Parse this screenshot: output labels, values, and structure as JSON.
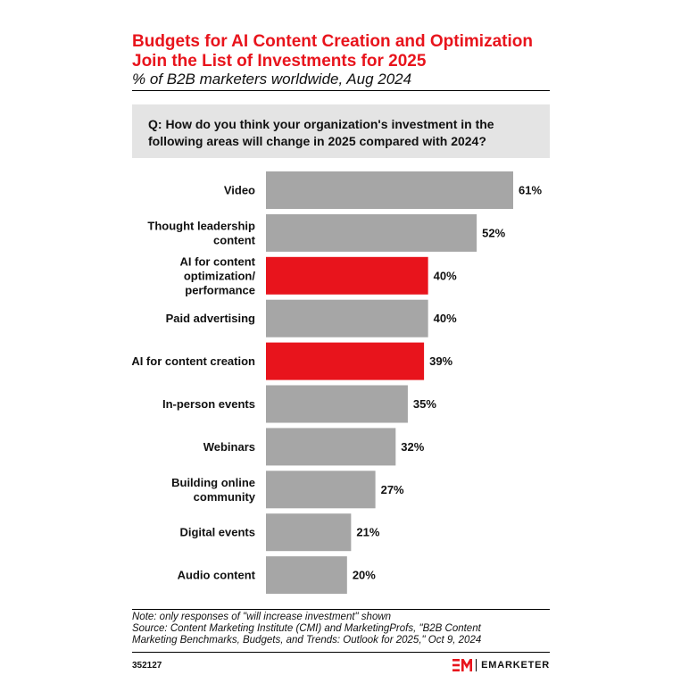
{
  "header": {
    "title_line1": "Budgets for AI Content Creation and Optimization",
    "title_line2": "Join the List of Investments for 2025",
    "subtitle": "% of B2B marketers worldwide, Aug 2024",
    "question_line1": "Q: How do you think your organization's investment in the",
    "question_line2": "following areas will change in 2025 compared with 2024?"
  },
  "chart_data": {
    "type": "bar",
    "orientation": "horizontal",
    "title": "Budgets for AI Content Creation and Optimization Join the List of Investments for 2025",
    "subtitle": "% of B2B marketers worldwide, Aug 2024",
    "xlim": [
      0,
      61
    ],
    "value_suffix": "%",
    "categories": [
      {
        "lines": [
          "Video"
        ],
        "value": 61,
        "highlight": false
      },
      {
        "lines": [
          "Thought leadership",
          "content"
        ],
        "value": 52,
        "highlight": false
      },
      {
        "lines": [
          "AI for content",
          "optimization/",
          "performance"
        ],
        "value": 40,
        "highlight": true
      },
      {
        "lines": [
          "Paid advertising"
        ],
        "value": 40,
        "highlight": false
      },
      {
        "lines": [
          "AI for content creation"
        ],
        "value": 39,
        "highlight": true
      },
      {
        "lines": [
          "In-person events"
        ],
        "value": 35,
        "highlight": false
      },
      {
        "lines": [
          "Webinars"
        ],
        "value": 32,
        "highlight": false
      },
      {
        "lines": [
          "Building online",
          "community"
        ],
        "value": 27,
        "highlight": false
      },
      {
        "lines": [
          "Digital events"
        ],
        "value": 21,
        "highlight": false
      },
      {
        "lines": [
          "Audio content"
        ],
        "value": 20,
        "highlight": false
      }
    ],
    "colors": {
      "default": "#a6a6a6",
      "highlight": "#e8141c"
    }
  },
  "footer": {
    "note": "Note: only responses of \"will increase investment\" shown",
    "source_line1": "Source: Content Marketing Institute (CMI) and MarketingProfs, \"B2B Content",
    "source_line2": "Marketing Benchmarks, Budgets, and Trends: Outlook for 2025,\" Oct 9, 2024",
    "chart_id": "352127",
    "brand": "EMARKETER"
  }
}
